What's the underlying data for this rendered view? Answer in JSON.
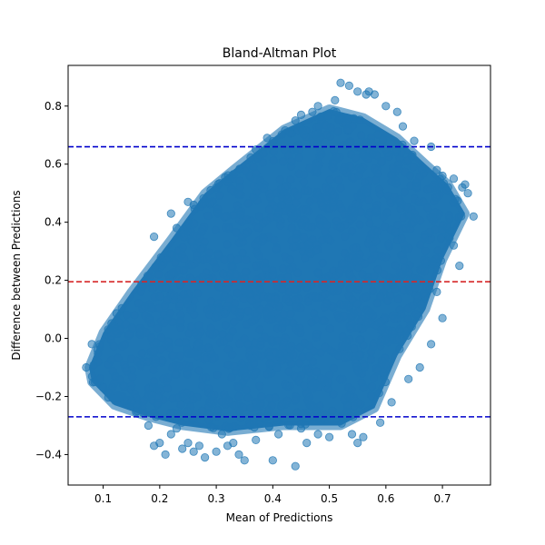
{
  "chart_data": {
    "type": "scatter",
    "title": "Bland-Altman Plot",
    "xlabel": "Mean of Predictions",
    "ylabel": "Difference between Predictions",
    "xlim": [
      0.038,
      0.785
    ],
    "ylim": [
      -0.505,
      0.94
    ],
    "x_ticks": [
      0.1,
      0.2,
      0.3,
      0.4,
      0.5,
      0.6,
      0.7
    ],
    "x_tick_labels": [
      "0.1",
      "0.2",
      "0.3",
      "0.4",
      "0.5",
      "0.6",
      "0.7"
    ],
    "y_ticks": [
      -0.4,
      -0.2,
      0.0,
      0.2,
      0.4,
      0.6,
      0.8
    ],
    "y_tick_labels": [
      "−0.4",
      "−0.2",
      "0.0",
      "0.2",
      "0.4",
      "0.6",
      "0.8"
    ],
    "grid": false,
    "reference_lines": [
      {
        "value": 0.195,
        "color": "#d62728",
        "style": "dashed"
      },
      {
        "value": 0.66,
        "color": "#0000cc",
        "style": "dashed"
      },
      {
        "value": -0.27,
        "color": "#0000cc",
        "style": "dashed"
      }
    ],
    "point_color": "#1f77b4",
    "point_alpha": 0.55,
    "cloud_shape": [
      [
        0.075,
        -0.1
      ],
      [
        0.1,
        0.02
      ],
      [
        0.15,
        0.16
      ],
      [
        0.22,
        0.34
      ],
      [
        0.28,
        0.5
      ],
      [
        0.33,
        0.58
      ],
      [
        0.42,
        0.72
      ],
      [
        0.5,
        0.79
      ],
      [
        0.56,
        0.76
      ],
      [
        0.62,
        0.69
      ],
      [
        0.67,
        0.6
      ],
      [
        0.71,
        0.53
      ],
      [
        0.74,
        0.43
      ],
      [
        0.7,
        0.27
      ],
      [
        0.67,
        0.1
      ],
      [
        0.62,
        -0.06
      ],
      [
        0.58,
        -0.24
      ],
      [
        0.52,
        -0.3
      ],
      [
        0.42,
        -0.3
      ],
      [
        0.32,
        -0.32
      ],
      [
        0.24,
        -0.3
      ],
      [
        0.18,
        -0.27
      ],
      [
        0.12,
        -0.23
      ],
      [
        0.08,
        -0.15
      ]
    ],
    "outlier_points": [
      [
        0.52,
        0.88
      ],
      [
        0.535,
        0.87
      ],
      [
        0.55,
        0.85
      ],
      [
        0.565,
        0.84
      ],
      [
        0.58,
        0.84
      ],
      [
        0.51,
        0.82
      ],
      [
        0.47,
        0.78
      ],
      [
        0.45,
        0.77
      ],
      [
        0.44,
        0.75
      ],
      [
        0.6,
        0.8
      ],
      [
        0.62,
        0.78
      ],
      [
        0.39,
        0.69
      ],
      [
        0.37,
        0.65
      ],
      [
        0.33,
        0.565
      ],
      [
        0.29,
        0.51
      ],
      [
        0.25,
        0.47
      ],
      [
        0.22,
        0.43
      ],
      [
        0.19,
        0.35
      ],
      [
        0.69,
        0.58
      ],
      [
        0.7,
        0.56
      ],
      [
        0.72,
        0.55
      ],
      [
        0.735,
        0.52
      ],
      [
        0.745,
        0.5
      ],
      [
        0.755,
        0.42
      ],
      [
        0.71,
        0.52
      ],
      [
        0.72,
        0.32
      ],
      [
        0.73,
        0.25
      ],
      [
        0.69,
        0.16
      ],
      [
        0.7,
        0.07
      ],
      [
        0.68,
        -0.02
      ],
      [
        0.66,
        -0.1
      ],
      [
        0.64,
        -0.14
      ],
      [
        0.61,
        -0.22
      ],
      [
        0.59,
        -0.29
      ],
      [
        0.56,
        -0.34
      ],
      [
        0.55,
        -0.36
      ],
      [
        0.54,
        -0.33
      ],
      [
        0.5,
        -0.34
      ],
      [
        0.48,
        -0.33
      ],
      [
        0.46,
        -0.36
      ],
      [
        0.44,
        -0.44
      ],
      [
        0.41,
        -0.33
      ],
      [
        0.4,
        -0.42
      ],
      [
        0.37,
        -0.35
      ],
      [
        0.35,
        -0.42
      ],
      [
        0.34,
        -0.4
      ],
      [
        0.32,
        -0.37
      ],
      [
        0.3,
        -0.39
      ],
      [
        0.28,
        -0.41
      ],
      [
        0.27,
        -0.37
      ],
      [
        0.26,
        -0.39
      ],
      [
        0.25,
        -0.36
      ],
      [
        0.24,
        -0.38
      ],
      [
        0.22,
        -0.33
      ],
      [
        0.2,
        -0.36
      ],
      [
        0.19,
        -0.37
      ],
      [
        0.21,
        -0.4
      ],
      [
        0.18,
        -0.3
      ],
      [
        0.15,
        -0.22
      ],
      [
        0.13,
        -0.2
      ],
      [
        0.1,
        -0.17
      ],
      [
        0.085,
        -0.15
      ],
      [
        0.07,
        -0.1
      ],
      [
        0.08,
        -0.02
      ],
      [
        0.09,
        -0.04
      ],
      [
        0.12,
        0.04
      ],
      [
        0.17,
        0.18
      ],
      [
        0.23,
        0.38
      ],
      [
        0.26,
        0.46
      ],
      [
        0.3,
        0.52
      ],
      [
        0.43,
        0.71
      ],
      [
        0.48,
        0.8
      ],
      [
        0.57,
        0.85
      ],
      [
        0.63,
        0.73
      ],
      [
        0.65,
        0.68
      ],
      [
        0.68,
        0.66
      ],
      [
        0.74,
        0.53
      ],
      [
        0.67,
        0.3
      ],
      [
        0.66,
        0.2
      ],
      [
        0.45,
        -0.31
      ],
      [
        0.36,
        -0.3
      ],
      [
        0.31,
        -0.33
      ],
      [
        0.23,
        -0.31
      ],
      [
        0.16,
        -0.25
      ],
      [
        0.33,
        -0.36
      ]
    ]
  }
}
